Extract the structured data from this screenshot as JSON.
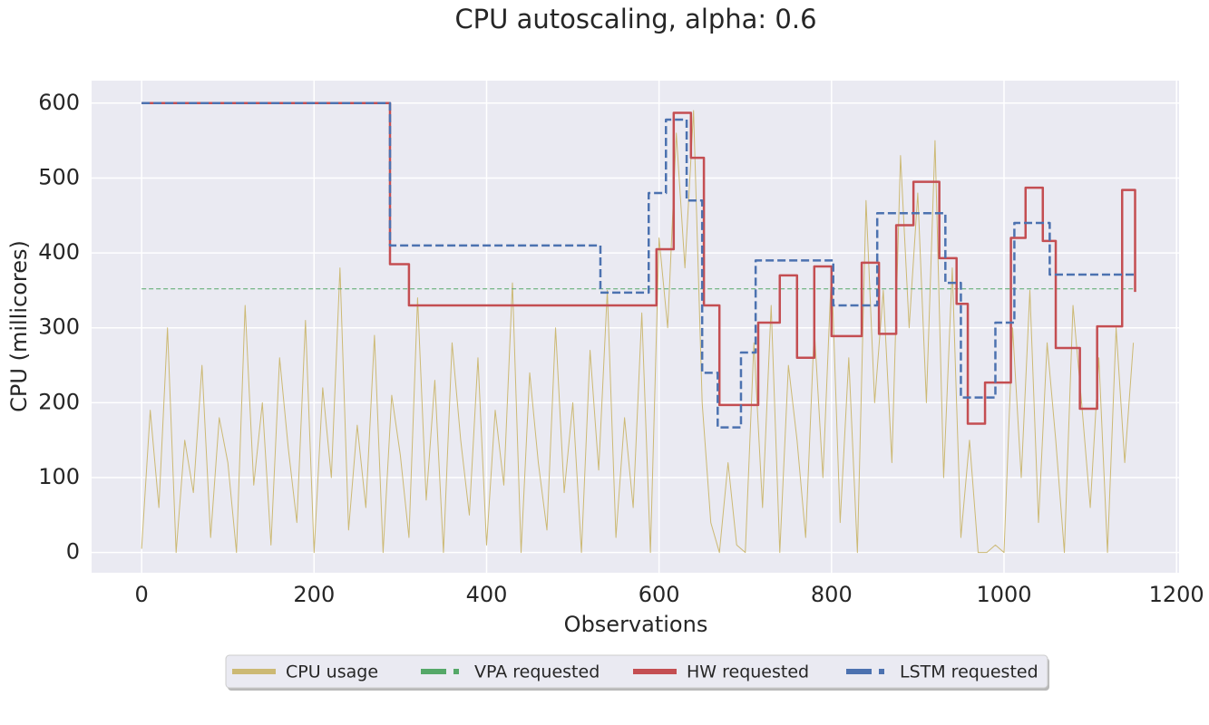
{
  "chart_data": {
    "type": "line",
    "title": "CPU autoscaling, alpha: 0.6",
    "xlabel": "Observations",
    "ylabel": "CPU (millicores)",
    "xlim": [
      -58,
      1203
    ],
    "ylim": [
      -27,
      630
    ],
    "xticks": [
      0,
      200,
      400,
      600,
      800,
      1000,
      1200
    ],
    "yticks": [
      0,
      100,
      200,
      300,
      400,
      500,
      600
    ],
    "grid": true,
    "legend": "bottom",
    "series": [
      {
        "name": "CPU usage",
        "color": "#ccb974",
        "linestyle": "solid",
        "step": false,
        "x": [
          0,
          10,
          20,
          30,
          40,
          50,
          60,
          70,
          80,
          90,
          100,
          110,
          120,
          130,
          140,
          150,
          160,
          170,
          180,
          190,
          200,
          210,
          220,
          230,
          240,
          250,
          260,
          270,
          280,
          290,
          300,
          310,
          320,
          330,
          340,
          350,
          360,
          370,
          380,
          390,
          400,
          410,
          420,
          430,
          440,
          450,
          460,
          470,
          480,
          490,
          500,
          510,
          520,
          530,
          540,
          550,
          560,
          570,
          580,
          590,
          600,
          610,
          620,
          630,
          640,
          650,
          660,
          670,
          680,
          690,
          700,
          710,
          720,
          730,
          740,
          750,
          760,
          770,
          780,
          790,
          800,
          810,
          820,
          830,
          840,
          850,
          860,
          870,
          880,
          890,
          900,
          910,
          920,
          930,
          940,
          950,
          960,
          970,
          980,
          990,
          1000,
          1010,
          1020,
          1030,
          1040,
          1050,
          1060,
          1070,
          1080,
          1090,
          1100,
          1110,
          1120,
          1130,
          1140,
          1150
        ],
        "values": [
          5,
          190,
          60,
          300,
          0,
          150,
          80,
          250,
          20,
          180,
          120,
          0,
          330,
          90,
          200,
          10,
          260,
          140,
          40,
          310,
          0,
          220,
          100,
          380,
          30,
          170,
          60,
          290,
          0,
          210,
          130,
          20,
          340,
          70,
          230,
          0,
          280,
          150,
          50,
          260,
          10,
          190,
          90,
          360,
          0,
          240,
          120,
          30,
          300,
          80,
          200,
          0,
          270,
          110,
          350,
          20,
          180,
          60,
          320,
          0,
          420,
          300,
          560,
          380,
          590,
          200,
          40,
          0,
          120,
          10,
          0,
          280,
          60,
          330,
          0,
          250,
          150,
          20,
          300,
          100,
          380,
          40,
          260,
          0,
          470,
          200,
          350,
          120,
          530,
          300,
          480,
          200,
          550,
          100,
          380,
          20,
          150,
          0,
          0,
          10,
          0,
          300,
          100,
          350,
          40,
          280,
          150,
          0,
          330,
          200,
          60,
          260,
          0,
          300,
          120,
          280
        ]
      },
      {
        "name": "VPA requested",
        "color": "#55a868",
        "linestyle": "dashed",
        "step": false,
        "x": [
          0,
          1150
        ],
        "values": [
          352,
          352
        ]
      },
      {
        "name": "HW requested",
        "color": "#c44e52",
        "linestyle": "solid",
        "step": true,
        "x": [
          0,
          288,
          310,
          597,
          617,
          637,
          652,
          670,
          715,
          740,
          760,
          780,
          800,
          835,
          855,
          875,
          895,
          925,
          945,
          958,
          978,
          1008,
          1025,
          1045,
          1060,
          1088,
          1108,
          1137,
          1152
        ],
        "values": [
          600,
          385,
          330,
          405,
          587,
          527,
          330,
          197,
          307,
          370,
          260,
          382,
          289,
          387,
          292,
          437,
          495,
          393,
          332,
          172,
          227,
          420,
          487,
          416,
          273,
          192,
          302,
          484,
          348
        ]
      },
      {
        "name": "LSTM requested",
        "color": "#4c72b0",
        "linestyle": "dashed",
        "step": true,
        "x": [
          0,
          288,
          532,
          588,
          608,
          632,
          650,
          668,
          695,
          712,
          802,
          853,
          932,
          950,
          990,
          1012,
          1053,
          1152
        ],
        "values": [
          600,
          410,
          347,
          480,
          578,
          470,
          240,
          167,
          267,
          390,
          330,
          453,
          360,
          207,
          307,
          440,
          371,
          371
        ]
      }
    ]
  }
}
